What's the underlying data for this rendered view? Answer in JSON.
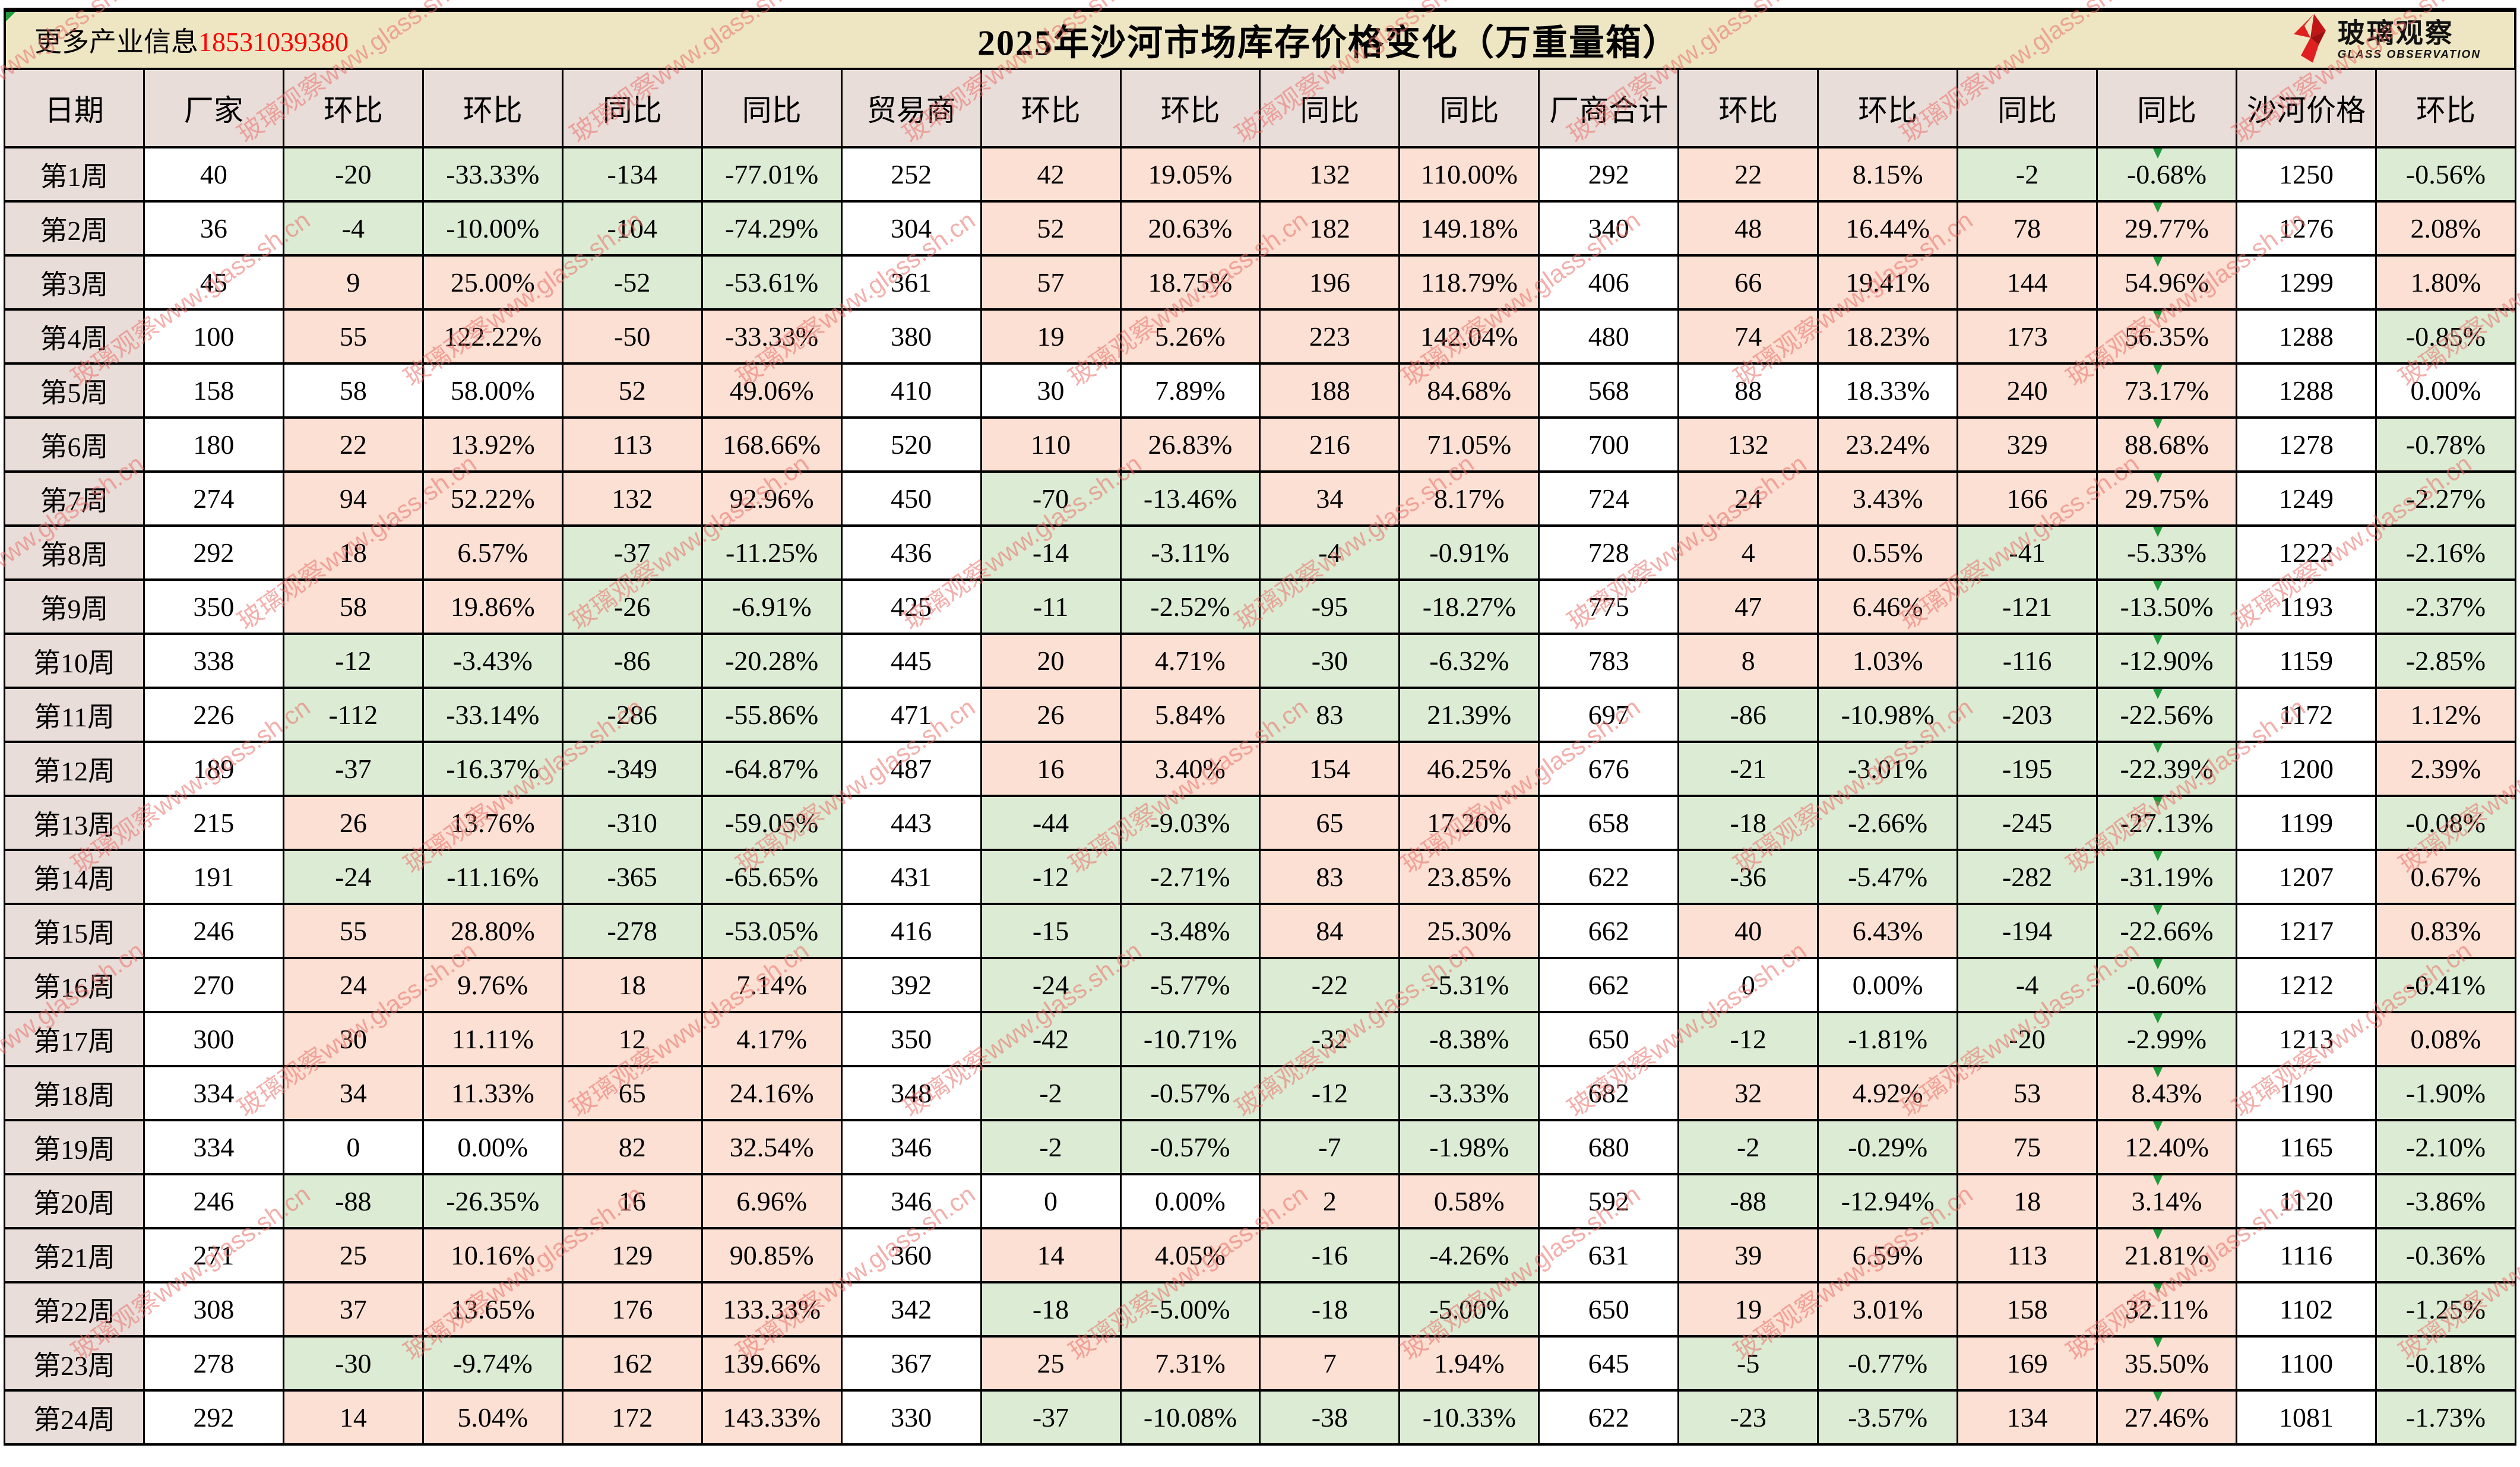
{
  "banner": {
    "info_label": "更多产业信息",
    "phone": "18531039380",
    "title": "2025年沙河市场库存价格变化（万重量箱）",
    "logo_cn": "玻璃观察",
    "logo_en": "GLASS OBSERVATION"
  },
  "watermark": "玻璃观察www.glass.sh.cn",
  "colors": {
    "green_cell": "#dcebd3",
    "pink_cell": "#fbe0d3",
    "header_bg": "#e9ddd9",
    "banner_bg": "#eee6c3",
    "phone_red": "#ff0000",
    "note_triangle_green": "#1f9b3c"
  },
  "table": {
    "headers": [
      "日期",
      "厂家",
      "环比",
      "环比",
      "同比",
      "同比",
      "贸易商",
      "环比",
      "环比",
      "同比",
      "同比",
      "厂商合计",
      "环比",
      "环比",
      "同比",
      "同比",
      "沙河价格",
      "环比"
    ],
    "rows": [
      {
        "week": "第1周",
        "v": [
          "40",
          "-20",
          "-33.33%",
          "-134",
          "-77.01%",
          "252",
          "42",
          "19.05%",
          "132",
          "110.00%",
          "292",
          "22",
          "8.15%",
          "-2",
          "-0.68%",
          "1250",
          "-0.56%"
        ],
        "c": "wggggwppppwppggwg"
      },
      {
        "week": "第2周",
        "v": [
          "36",
          "-4",
          "-10.00%",
          "-104",
          "-74.29%",
          "304",
          "52",
          "20.63%",
          "182",
          "149.18%",
          "340",
          "48",
          "16.44%",
          "78",
          "29.77%",
          "1276",
          "2.08%"
        ],
        "c": "wggggwppppwppppwp"
      },
      {
        "week": "第3周",
        "v": [
          "45",
          "9",
          "25.00%",
          "-52",
          "-53.61%",
          "361",
          "57",
          "18.75%",
          "196",
          "118.79%",
          "406",
          "66",
          "19.41%",
          "144",
          "54.96%",
          "1299",
          "1.80%"
        ],
        "c": "wppggwppppwppppwp"
      },
      {
        "week": "第4周",
        "v": [
          "100",
          "55",
          "122.22%",
          "-50",
          "-33.33%",
          "380",
          "19",
          "5.26%",
          "223",
          "142.04%",
          "480",
          "74",
          "18.23%",
          "173",
          "56.35%",
          "1288",
          "-0.85%"
        ],
        "c": "wppppwppppwppppwg"
      },
      {
        "week": "第5周",
        "v": [
          "158",
          "58",
          "58.00%",
          "52",
          "49.06%",
          "410",
          "30",
          "7.89%",
          "188",
          "84.68%",
          "568",
          "88",
          "18.33%",
          "240",
          "73.17%",
          "1288",
          "0.00%"
        ],
        "c": "wwwppwwwppwwwppww"
      },
      {
        "week": "第6周",
        "v": [
          "180",
          "22",
          "13.92%",
          "113",
          "168.66%",
          "520",
          "110",
          "26.83%",
          "216",
          "71.05%",
          "700",
          "132",
          "23.24%",
          "329",
          "88.68%",
          "1278",
          "-0.78%"
        ],
        "c": "wppppwppppwppppwg"
      },
      {
        "week": "第7周",
        "v": [
          "274",
          "94",
          "52.22%",
          "132",
          "92.96%",
          "450",
          "-70",
          "-13.46%",
          "34",
          "8.17%",
          "724",
          "24",
          "3.43%",
          "166",
          "29.75%",
          "1249",
          "-2.27%"
        ],
        "c": "wppppwggppwppppwg"
      },
      {
        "week": "第8周",
        "v": [
          "292",
          "18",
          "6.57%",
          "-37",
          "-11.25%",
          "436",
          "-14",
          "-3.11%",
          "-4",
          "-0.91%",
          "728",
          "4",
          "0.55%",
          "-41",
          "-5.33%",
          "1222",
          "-2.16%"
        ],
        "c": "wppggwggggwppggwg"
      },
      {
        "week": "第9周",
        "v": [
          "350",
          "58",
          "19.86%",
          "-26",
          "-6.91%",
          "425",
          "-11",
          "-2.52%",
          "-95",
          "-18.27%",
          "775",
          "47",
          "6.46%",
          "-121",
          "-13.50%",
          "1193",
          "-2.37%"
        ],
        "c": "wppggwggggwppggwg"
      },
      {
        "week": "第10周",
        "v": [
          "338",
          "-12",
          "-3.43%",
          "-86",
          "-20.28%",
          "445",
          "20",
          "4.71%",
          "-30",
          "-6.32%",
          "783",
          "8",
          "1.03%",
          "-116",
          "-12.90%",
          "1159",
          "-2.85%"
        ],
        "c": "wggggwppggwppggwg"
      },
      {
        "week": "第11周",
        "v": [
          "226",
          "-112",
          "-33.14%",
          "-286",
          "-55.86%",
          "471",
          "26",
          "5.84%",
          "83",
          "21.39%",
          "697",
          "-86",
          "-10.98%",
          "-203",
          "-22.56%",
          "1172",
          "1.12%"
        ],
        "c": "wggggwppggwggggwp"
      },
      {
        "week": "第12周",
        "v": [
          "189",
          "-37",
          "-16.37%",
          "-349",
          "-64.87%",
          "487",
          "16",
          "3.40%",
          "154",
          "46.25%",
          "676",
          "-21",
          "-3.01%",
          "-195",
          "-22.39%",
          "1200",
          "2.39%"
        ],
        "c": "wggggwppppwggggwp"
      },
      {
        "week": "第13周",
        "v": [
          "215",
          "26",
          "13.76%",
          "-310",
          "-59.05%",
          "443",
          "-44",
          "-9.03%",
          "65",
          "17.20%",
          "658",
          "-18",
          "-2.66%",
          "-245",
          "-27.13%",
          "1199",
          "-0.08%"
        ],
        "c": "wppggwggppwggggwg"
      },
      {
        "week": "第14周",
        "v": [
          "191",
          "-24",
          "-11.16%",
          "-365",
          "-65.65%",
          "431",
          "-12",
          "-2.71%",
          "83",
          "23.85%",
          "622",
          "-36",
          "-5.47%",
          "-282",
          "-31.19%",
          "1207",
          "0.67%"
        ],
        "c": "wggggwggppwggggwp"
      },
      {
        "week": "第15周",
        "v": [
          "246",
          "55",
          "28.80%",
          "-278",
          "-53.05%",
          "416",
          "-15",
          "-3.48%",
          "84",
          "25.30%",
          "662",
          "40",
          "6.43%",
          "-194",
          "-22.66%",
          "1217",
          "0.83%"
        ],
        "c": "wppggwggppwppggwp"
      },
      {
        "week": "第16周",
        "v": [
          "270",
          "24",
          "9.76%",
          "18",
          "7.14%",
          "392",
          "-24",
          "-5.77%",
          "-22",
          "-5.31%",
          "662",
          "0",
          "0.00%",
          "-4",
          "-0.60%",
          "1212",
          "-0.41%"
        ],
        "c": "wppppwggggwwwggwg"
      },
      {
        "week": "第17周",
        "v": [
          "300",
          "30",
          "11.11%",
          "12",
          "4.17%",
          "350",
          "-42",
          "-10.71%",
          "-32",
          "-8.38%",
          "650",
          "-12",
          "-1.81%",
          "-20",
          "-2.99%",
          "1213",
          "0.08%"
        ],
        "c": "wppppwggggwggggwp"
      },
      {
        "week": "第18周",
        "v": [
          "334",
          "34",
          "11.33%",
          "65",
          "24.16%",
          "348",
          "-2",
          "-0.57%",
          "-12",
          "-3.33%",
          "682",
          "32",
          "4.92%",
          "53",
          "8.43%",
          "1190",
          "-1.90%"
        ],
        "c": "wppppwggggwppppwg"
      },
      {
        "week": "第19周",
        "v": [
          "334",
          "0",
          "0.00%",
          "82",
          "32.54%",
          "346",
          "-2",
          "-0.57%",
          "-7",
          "-1.98%",
          "680",
          "-2",
          "-0.29%",
          "75",
          "12.40%",
          "1165",
          "-2.10%"
        ],
        "c": "wwwppwggggwggppwg"
      },
      {
        "week": "第20周",
        "v": [
          "246",
          "-88",
          "-26.35%",
          "16",
          "6.96%",
          "346",
          "0",
          "0.00%",
          "2",
          "0.58%",
          "592",
          "-88",
          "-12.94%",
          "18",
          "3.14%",
          "1120",
          "-3.86%"
        ],
        "c": "wggppwwwppwggppwg"
      },
      {
        "week": "第21周",
        "v": [
          "271",
          "25",
          "10.16%",
          "129",
          "90.85%",
          "360",
          "14",
          "4.05%",
          "-16",
          "-4.26%",
          "631",
          "39",
          "6.59%",
          "113",
          "21.81%",
          "1116",
          "-0.36%"
        ],
        "c": "wppppwppggwppppwg"
      },
      {
        "week": "第22周",
        "v": [
          "308",
          "37",
          "13.65%",
          "176",
          "133.33%",
          "342",
          "-18",
          "-5.00%",
          "-18",
          "-5.00%",
          "650",
          "19",
          "3.01%",
          "158",
          "32.11%",
          "1102",
          "-1.25%"
        ],
        "c": "wppppwggggwppppwg"
      },
      {
        "week": "第23周",
        "v": [
          "278",
          "-30",
          "-9.74%",
          "162",
          "139.66%",
          "367",
          "25",
          "7.31%",
          "7",
          "1.94%",
          "645",
          "-5",
          "-0.77%",
          "169",
          "35.50%",
          "1100",
          "-0.18%"
        ],
        "c": "wggppwppppwggppwg"
      },
      {
        "week": "第24周",
        "v": [
          "292",
          "14",
          "5.04%",
          "172",
          "143.33%",
          "330",
          "-37",
          "-10.08%",
          "-38",
          "-10.33%",
          "622",
          "-23",
          "-3.57%",
          "134",
          "27.46%",
          "1081",
          "-1.73%"
        ],
        "c": "wppppwggggwggppwg"
      }
    ],
    "note_column_index": 14
  }
}
